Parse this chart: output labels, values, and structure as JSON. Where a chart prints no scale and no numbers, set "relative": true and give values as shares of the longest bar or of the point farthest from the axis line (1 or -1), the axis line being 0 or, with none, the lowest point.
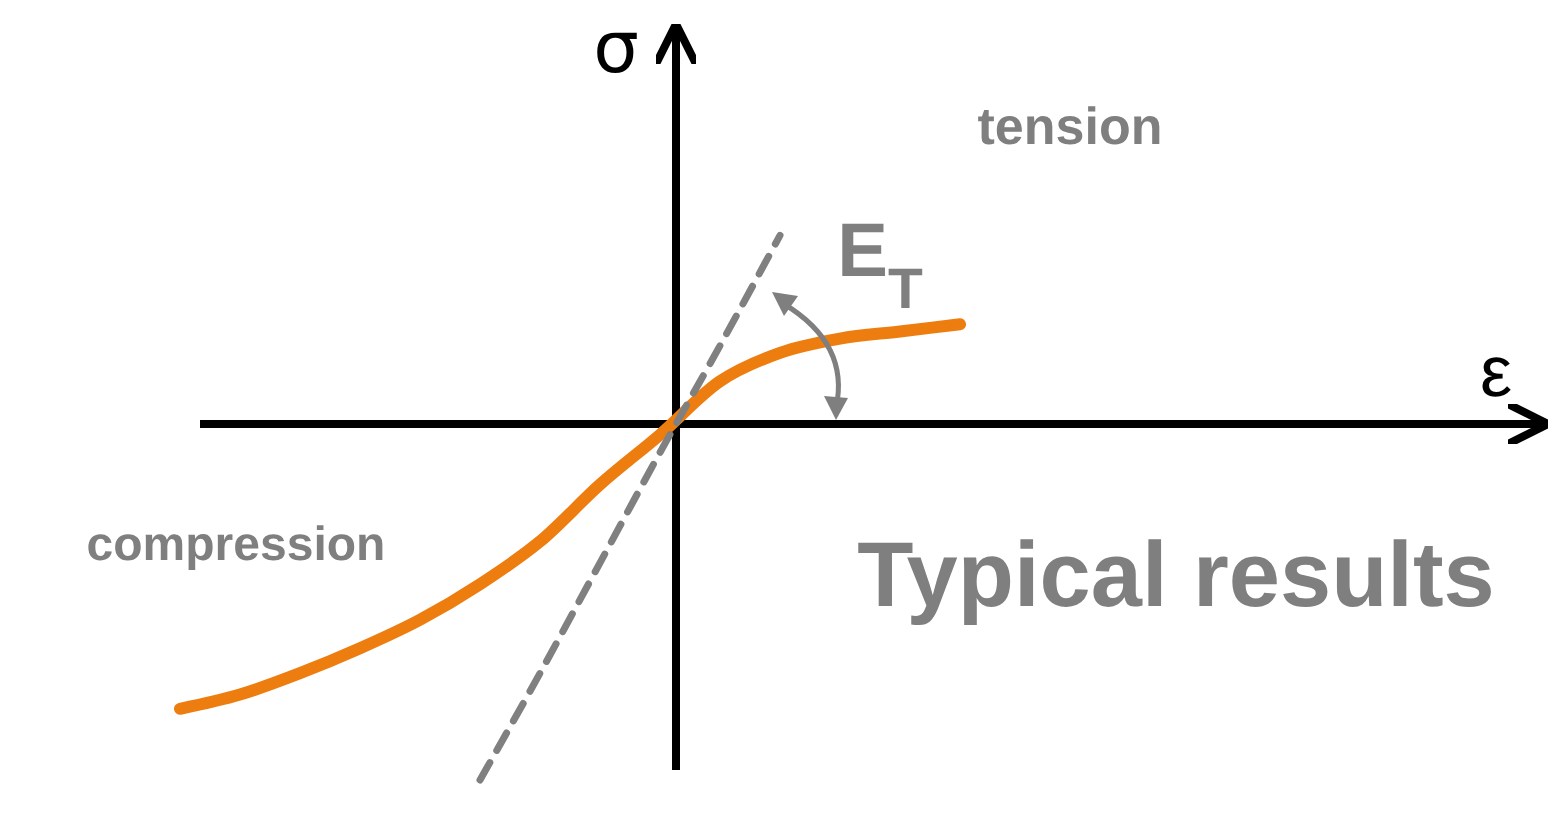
{
  "chart_data": {
    "type": "line",
    "relative": true,
    "ylabel": "σ",
    "categories": [
      null,
      null,
      null,
      null,
      null,
      null,
      null,
      null,
      null,
      null,
      null,
      null,
      null,
      null
    ],
    "series": [
      {
        "color": "#ee7d10",
        "values": [
          -0.8,
          -0.76,
          -0.7,
          -0.63,
          -0.55,
          -0.45,
          -0.33,
          -0.17,
          -0.03,
          0.12,
          0.2,
          0.24,
          0.26,
          0.28
        ]
      },
      {
        "color": "#808080",
        "line_style": "dashed",
        "values": [
          null,
          null,
          null,
          null,
          null,
          -1,
          -0.7,
          -0.39,
          -0.08,
          0.22,
          0.53,
          null,
          null,
          null
        ]
      }
    ],
    "annotations": [
      "tension",
      "compression",
      "Typical results",
      "E$_{T}$",
      "ε"
    ]
  }
}
